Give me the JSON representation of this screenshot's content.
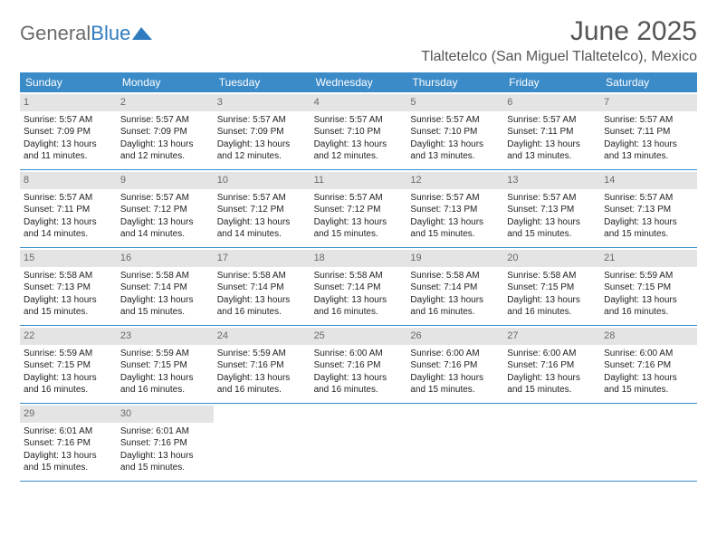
{
  "brand": {
    "part1": "General",
    "part2": "Blue"
  },
  "title": "June 2025",
  "location": "Tlaltetelco (San Miguel Tlaltetelco), Mexico",
  "colors": {
    "header_bg": "#3b8bc8",
    "header_fg": "#ffffff",
    "daynum_bg": "#e4e4e4",
    "daynum_fg": "#6a6a6a",
    "rule": "#3b8bc8",
    "text": "#222222",
    "title": "#555555",
    "logo_gray": "#6b6b6b",
    "logo_blue": "#2f7bbf"
  },
  "daysOfWeek": [
    "Sunday",
    "Monday",
    "Tuesday",
    "Wednesday",
    "Thursday",
    "Friday",
    "Saturday"
  ],
  "weeks": [
    [
      {
        "n": "1",
        "sr": "5:57 AM",
        "ss": "7:09 PM",
        "dl": "13 hours and 11 minutes."
      },
      {
        "n": "2",
        "sr": "5:57 AM",
        "ss": "7:09 PM",
        "dl": "13 hours and 12 minutes."
      },
      {
        "n": "3",
        "sr": "5:57 AM",
        "ss": "7:09 PM",
        "dl": "13 hours and 12 minutes."
      },
      {
        "n": "4",
        "sr": "5:57 AM",
        "ss": "7:10 PM",
        "dl": "13 hours and 12 minutes."
      },
      {
        "n": "5",
        "sr": "5:57 AM",
        "ss": "7:10 PM",
        "dl": "13 hours and 13 minutes."
      },
      {
        "n": "6",
        "sr": "5:57 AM",
        "ss": "7:11 PM",
        "dl": "13 hours and 13 minutes."
      },
      {
        "n": "7",
        "sr": "5:57 AM",
        "ss": "7:11 PM",
        "dl": "13 hours and 13 minutes."
      }
    ],
    [
      {
        "n": "8",
        "sr": "5:57 AM",
        "ss": "7:11 PM",
        "dl": "13 hours and 14 minutes."
      },
      {
        "n": "9",
        "sr": "5:57 AM",
        "ss": "7:12 PM",
        "dl": "13 hours and 14 minutes."
      },
      {
        "n": "10",
        "sr": "5:57 AM",
        "ss": "7:12 PM",
        "dl": "13 hours and 14 minutes."
      },
      {
        "n": "11",
        "sr": "5:57 AM",
        "ss": "7:12 PM",
        "dl": "13 hours and 15 minutes."
      },
      {
        "n": "12",
        "sr": "5:57 AM",
        "ss": "7:13 PM",
        "dl": "13 hours and 15 minutes."
      },
      {
        "n": "13",
        "sr": "5:57 AM",
        "ss": "7:13 PM",
        "dl": "13 hours and 15 minutes."
      },
      {
        "n": "14",
        "sr": "5:57 AM",
        "ss": "7:13 PM",
        "dl": "13 hours and 15 minutes."
      }
    ],
    [
      {
        "n": "15",
        "sr": "5:58 AM",
        "ss": "7:13 PM",
        "dl": "13 hours and 15 minutes."
      },
      {
        "n": "16",
        "sr": "5:58 AM",
        "ss": "7:14 PM",
        "dl": "13 hours and 15 minutes."
      },
      {
        "n": "17",
        "sr": "5:58 AM",
        "ss": "7:14 PM",
        "dl": "13 hours and 16 minutes."
      },
      {
        "n": "18",
        "sr": "5:58 AM",
        "ss": "7:14 PM",
        "dl": "13 hours and 16 minutes."
      },
      {
        "n": "19",
        "sr": "5:58 AM",
        "ss": "7:14 PM",
        "dl": "13 hours and 16 minutes."
      },
      {
        "n": "20",
        "sr": "5:58 AM",
        "ss": "7:15 PM",
        "dl": "13 hours and 16 minutes."
      },
      {
        "n": "21",
        "sr": "5:59 AM",
        "ss": "7:15 PM",
        "dl": "13 hours and 16 minutes."
      }
    ],
    [
      {
        "n": "22",
        "sr": "5:59 AM",
        "ss": "7:15 PM",
        "dl": "13 hours and 16 minutes."
      },
      {
        "n": "23",
        "sr": "5:59 AM",
        "ss": "7:15 PM",
        "dl": "13 hours and 16 minutes."
      },
      {
        "n": "24",
        "sr": "5:59 AM",
        "ss": "7:16 PM",
        "dl": "13 hours and 16 minutes."
      },
      {
        "n": "25",
        "sr": "6:00 AM",
        "ss": "7:16 PM",
        "dl": "13 hours and 16 minutes."
      },
      {
        "n": "26",
        "sr": "6:00 AM",
        "ss": "7:16 PM",
        "dl": "13 hours and 15 minutes."
      },
      {
        "n": "27",
        "sr": "6:00 AM",
        "ss": "7:16 PM",
        "dl": "13 hours and 15 minutes."
      },
      {
        "n": "28",
        "sr": "6:00 AM",
        "ss": "7:16 PM",
        "dl": "13 hours and 15 minutes."
      }
    ],
    [
      {
        "n": "29",
        "sr": "6:01 AM",
        "ss": "7:16 PM",
        "dl": "13 hours and 15 minutes."
      },
      {
        "n": "30",
        "sr": "6:01 AM",
        "ss": "7:16 PM",
        "dl": "13 hours and 15 minutes."
      },
      null,
      null,
      null,
      null,
      null
    ]
  ],
  "labels": {
    "sunrise": "Sunrise:",
    "sunset": "Sunset:",
    "daylight": "Daylight:"
  }
}
